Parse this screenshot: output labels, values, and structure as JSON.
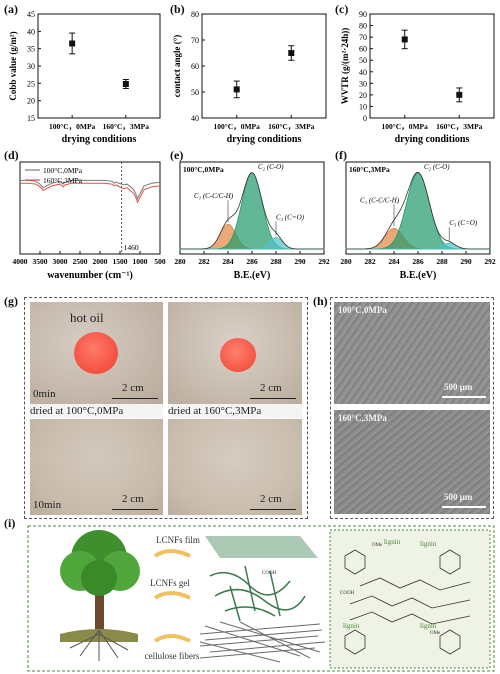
{
  "panels": {
    "a": "(a)",
    "b": "(b)",
    "c": "(c)",
    "d": "(d)",
    "e": "(e)",
    "f": "(f)",
    "g": "(g)",
    "h": "(h)",
    "i": "(i)"
  },
  "chart_data": [
    {
      "id": "a",
      "type": "scatter",
      "categories": [
        "100°C，0MPa",
        "160°C，3MPa"
      ],
      "values": [
        36.5,
        24.8
      ],
      "errors": [
        3.0,
        1.3
      ],
      "xlabel": "drying conditions",
      "ylabel": "Cobb value (g/m²)",
      "ylim": [
        15,
        45
      ],
      "yticks": [
        "15",
        "20",
        "25",
        "30",
        "35",
        "40",
        "45"
      ]
    },
    {
      "id": "b",
      "type": "scatter",
      "categories": [
        "100°C，0MPa",
        "160°C，3MPa"
      ],
      "values": [
        51,
        65
      ],
      "errors": [
        3.2,
        2.8
      ],
      "xlabel": "drying conditions",
      "ylabel": "contact angle (°)",
      "ylim": [
        40,
        80
      ],
      "yticks": [
        "40",
        "50",
        "60",
        "70",
        "80"
      ]
    },
    {
      "id": "c",
      "type": "scatter",
      "categories": [
        "100°C，0MPa",
        "160°C，3MPa"
      ],
      "values": [
        68,
        20
      ],
      "errors": [
        8,
        6
      ],
      "xlabel": "drying conditions",
      "ylabel": "WVTR (g/(m²·24h))",
      "ylim": [
        0,
        90
      ],
      "yticks": [
        "0",
        "10",
        "20",
        "30",
        "40",
        "50",
        "60",
        "70",
        "80",
        "90"
      ]
    },
    {
      "id": "d",
      "type": "line",
      "x": [
        4000,
        3800,
        3600,
        3500,
        3420,
        3340,
        3200,
        3000,
        2920,
        2880,
        2700,
        2400,
        2100,
        1900,
        1700,
        1640,
        1600,
        1460,
        1420,
        1320,
        1160,
        1110,
        1060,
        1030,
        900,
        700,
        500
      ],
      "series": [
        {
          "name": "100°C,0MPa",
          "color": "#7a7a7a",
          "values": [
            0.8,
            0.8,
            0.79,
            0.76,
            0.72,
            0.74,
            0.77,
            0.79,
            0.76,
            0.78,
            0.8,
            0.8,
            0.8,
            0.8,
            0.79,
            0.77,
            0.78,
            0.76,
            0.75,
            0.76,
            0.7,
            0.66,
            0.6,
            0.63,
            0.74,
            0.77,
            0.78
          ]
        },
        {
          "name": "160°C,3MPa",
          "color": "#d9534f",
          "values": [
            0.77,
            0.77,
            0.76,
            0.73,
            0.69,
            0.71,
            0.74,
            0.76,
            0.73,
            0.75,
            0.77,
            0.77,
            0.77,
            0.77,
            0.76,
            0.74,
            0.75,
            0.72,
            0.71,
            0.72,
            0.66,
            0.62,
            0.56,
            0.59,
            0.7,
            0.73,
            0.74
          ]
        }
      ],
      "annotation": "1460",
      "xlabel": "wavenumber (cm⁻¹)",
      "xticks": [
        "4000",
        "3500",
        "3000",
        "2500",
        "2000",
        "1500",
        "1000",
        "500"
      ],
      "xlim": [
        4000,
        500
      ],
      "ylim": [
        0,
        1
      ],
      "legend": "top-left"
    },
    {
      "id": "e",
      "type": "area",
      "title": "100°C,0MPa",
      "xlabel": "B.E.(eV)",
      "xlim": [
        280,
        292
      ],
      "xticks": [
        "280",
        "282",
        "284",
        "286",
        "288",
        "290",
        "292"
      ],
      "peaks": [
        {
          "label": "C₁ (C-C/C-H)",
          "center": 284.0,
          "height": 0.3,
          "width": 0.65,
          "color": "#e0843f"
        },
        {
          "label": "C₂ (C-O)",
          "center": 286.0,
          "height": 0.92,
          "width": 0.85,
          "color": "#1f9a6a"
        },
        {
          "label": "C₃ (C=O)",
          "center": 288.0,
          "height": 0.14,
          "width": 0.55,
          "color": "#4fc3c8"
        }
      ]
    },
    {
      "id": "f",
      "type": "area",
      "title": "160°C,3MPa",
      "xlabel": "B.E.(eV)",
      "xlim": [
        280,
        292
      ],
      "xticks": [
        "280",
        "282",
        "284",
        "286",
        "288",
        "290",
        "292"
      ],
      "peaks": [
        {
          "label": "C₁ (C-C/C-H)",
          "center": 284.0,
          "height": 0.25,
          "width": 0.75,
          "color": "#e0843f"
        },
        {
          "label": "C₂ (C-O)",
          "center": 286.0,
          "height": 0.92,
          "width": 0.95,
          "color": "#1f9a6a"
        },
        {
          "label": "C₃ (C=O)",
          "center": 288.6,
          "height": 0.07,
          "width": 0.55,
          "color": "#4fc3c8"
        }
      ]
    }
  ],
  "photos": {
    "hot_oil": "hot oil",
    "t0": "0min",
    "t10": "10min",
    "scale": "2 cm",
    "caption_left": "dried at 100°C,0MPa",
    "caption_right": "dried at 160°C,3MPa"
  },
  "sem": {
    "top": "100°C,0MPa",
    "bottom": "160°C,3MPa",
    "scale": "500 μm"
  },
  "schematic": {
    "film": "LCNFs film",
    "gel": "LCNFs gel",
    "fibers": "cellulose fibers",
    "lignin": "lignin",
    "ome": "OMe",
    "cooh": "COOH"
  }
}
